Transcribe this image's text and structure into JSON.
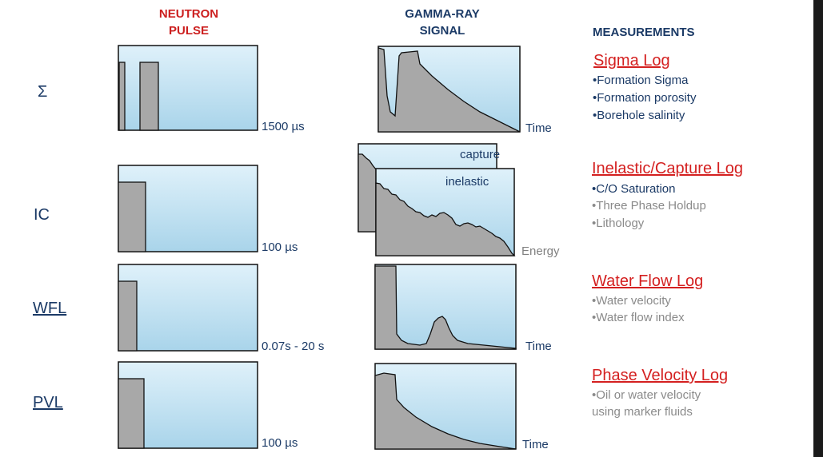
{
  "headers": {
    "neutron_line1": "NEUTRON",
    "neutron_line2": "PULSE",
    "gamma_line1": "GAMMA-RAY",
    "gamma_line2": "SIGNAL",
    "measurements": "MEASUREMENTS"
  },
  "rows": [
    {
      "label": "Σ",
      "pulse_duration": "1500 µs",
      "signal_axis": "Time",
      "log_title": "Sigma Log",
      "items": [
        "•Formation Sigma",
        "•Formation porosity",
        "•Borehole salinity"
      ]
    },
    {
      "label": "IC",
      "pulse_duration": "100 µs",
      "signal_axis": "Energy",
      "spectrum_labels": [
        "capture",
        "inelastic"
      ],
      "log_title": "Inelastic/Capture Log",
      "items": [
        "•C/O Saturation",
        "•Three Phase Holdup",
        "•Lithology"
      ]
    },
    {
      "label": "WFL",
      "pulse_duration": "0.07s - 20 s",
      "signal_axis": "Time",
      "log_title": "Water Flow Log",
      "items": [
        "•Water velocity",
        "•Water flow index"
      ]
    },
    {
      "label": "PVL",
      "pulse_duration": "100 µs",
      "signal_axis": "Time",
      "log_title": "Phase Velocity Log",
      "items": [
        "•Oil or water velocity",
        "using marker fluids"
      ]
    }
  ],
  "colors": {
    "header_red": "#cc1f1f",
    "navy": "#1b3a66",
    "panel_top": "#dff1fa",
    "panel_bottom": "#a9d4ea",
    "fill_gray": "#a8a8a8"
  }
}
